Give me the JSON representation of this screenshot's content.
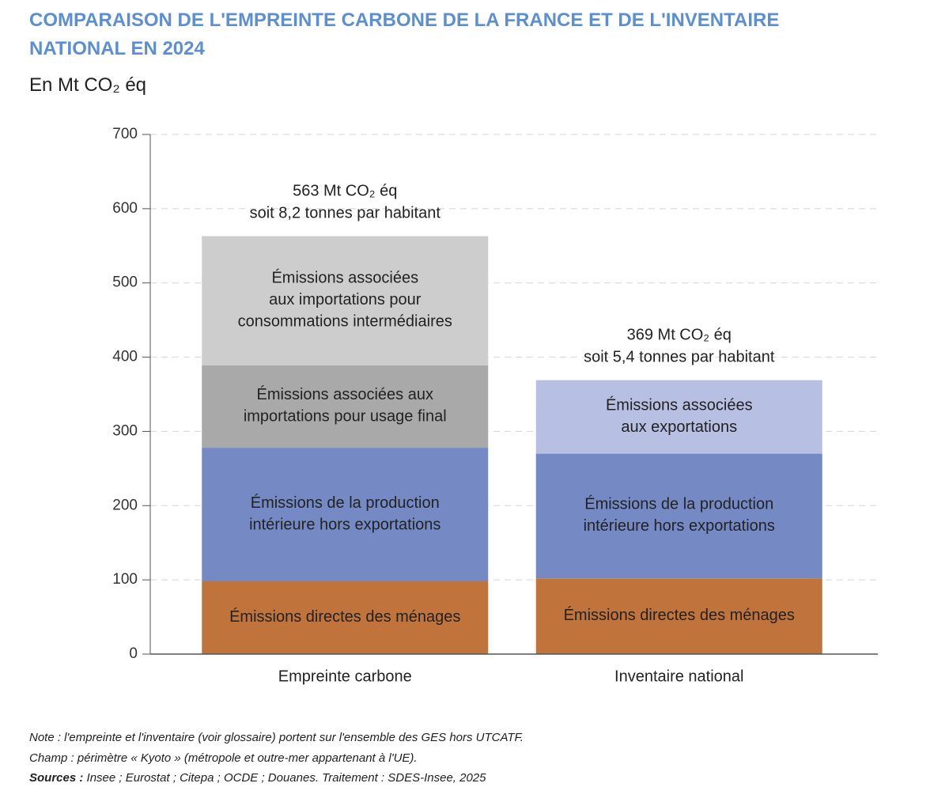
{
  "chart_data": {
    "type": "stacked-bar",
    "title": [
      "COMPARAISON DE L'EMPREINTE CARBONE DE LA FRANCE ET DE L'INVENTAIRE",
      "NATIONAL EN 2024"
    ],
    "y_label": "En Mt CO₂ éq",
    "categories": [
      "Empreinte carbone",
      "Inventaire national"
    ],
    "series": [
      {
        "name": "Émissions directes des ménages",
        "color": "#c0733a",
        "values": [
          98,
          102
        ]
      },
      {
        "name": "Émissions de la production\nintérieure hors exportations",
        "color": "#758ac5",
        "values": [
          180,
          168
        ]
      },
      {
        "name": "Émissions associées aux\nimportations pour usage final",
        "color": "#a9a9a9",
        "values": [
          111,
          null
        ]
      },
      {
        "name": "Émissions associées\naux importations pour\nconsommations intermédiaires",
        "color": "#cdcdce",
        "values": [
          174,
          null
        ]
      },
      {
        "name": "Émissions associées\naux exportations",
        "color": "#b7bfe2",
        "values": [
          null,
          99
        ]
      }
    ],
    "annotations": [
      "563 Mt CO₂ éq\nsoit 8,2 tonnes par habitant",
      "369 Mt CO₂ éq\nsoit 5,4 tonnes par habitant"
    ],
    "ylim": [
      0,
      700
    ],
    "yticks": [
      0,
      100,
      200,
      300,
      400,
      500,
      600,
      700
    ],
    "grid": true,
    "notes": [
      "Note : l'empreinte et l'inventaire (voir glossaire) portent sur l'ensemble des GES hors UTCATF.",
      "Champ : périmètre « Kyoto » (métropole et outre-mer appartenant à l'UE)."
    ],
    "sources": {
      "label": "Sources :",
      "text": " Insee ; Eurostat ; Citepa ; OCDE ; Douanes. Traitement : SDES-Insee, 2025"
    }
  }
}
